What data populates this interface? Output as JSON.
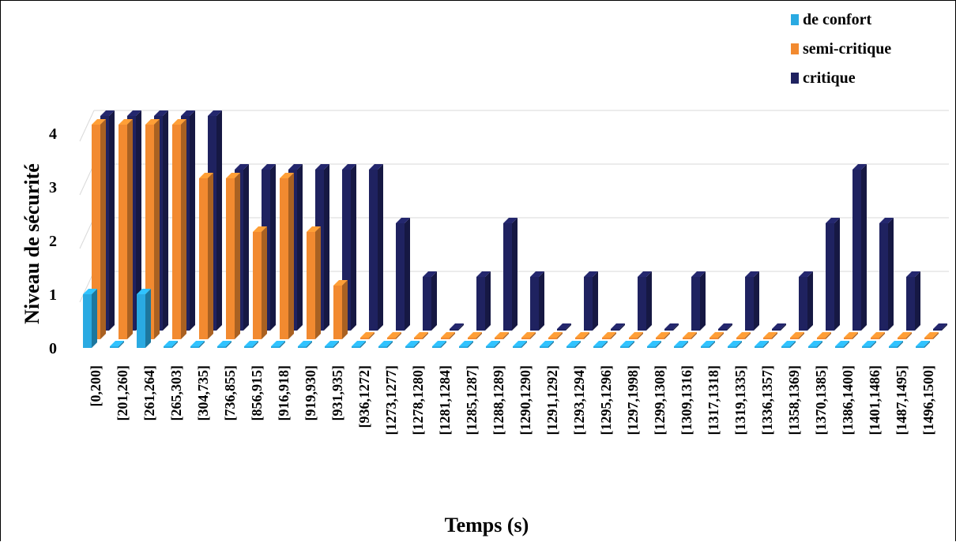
{
  "chart_data": {
    "type": "bar",
    "title": "",
    "xlabel": "Temps (s)",
    "ylabel": "Niveau de sécurité",
    "ylim": [
      0,
      4
    ],
    "yticks": [
      0,
      1,
      2,
      3,
      4
    ],
    "grid": true,
    "legend_position": "top-right",
    "categories": [
      "[0,200]",
      "[201,260]",
      "[261,264]",
      "[265,303]",
      "[304,735]",
      "[736,855]",
      "[856,915]",
      "[916,918]",
      "[919,930]",
      "[931,935]",
      "[936,1272]",
      "[1273,1277]",
      "[1278,1280]",
      "[1281,1284]",
      "[1285,1287]",
      "[1288,1289]",
      "[1290,1290]",
      "[1291,1292]",
      "[1293,1294]",
      "[1295,1296]",
      "[1297,1998]",
      "[1299,1308]",
      "[1309,1316]",
      "[1317,1318]",
      "[1319,1335]",
      "[1336,1357]",
      "[1358,1369]",
      "[1370,1385]",
      "[1386,1400]",
      "[1401,1486]",
      "[1487,1495]",
      "[1496,1500]"
    ],
    "series": [
      {
        "name": "de confort",
        "color": "#2aaae2",
        "values": [
          1,
          0,
          1,
          0,
          0,
          0,
          0,
          0,
          0,
          0,
          0,
          0,
          0,
          0,
          0,
          0,
          0,
          0,
          0,
          0,
          0,
          0,
          0,
          0,
          0,
          0,
          0,
          0,
          0,
          0,
          0,
          0
        ]
      },
      {
        "name": "semi-critique",
        "color": "#f28a30",
        "values": [
          4,
          4,
          4,
          4,
          3,
          3,
          2,
          3,
          2,
          1,
          0,
          0,
          0,
          0,
          0,
          0,
          0,
          0,
          0,
          0,
          0,
          0,
          0,
          0,
          0,
          0,
          0,
          0,
          0,
          0,
          0,
          0
        ]
      },
      {
        "name": "critique",
        "color": "#1f2260",
        "values": [
          4,
          4,
          4,
          4,
          4,
          3,
          3,
          3,
          3,
          3,
          3,
          2,
          1,
          0,
          1,
          2,
          1,
          0,
          1,
          0,
          1,
          0,
          1,
          0,
          1,
          0,
          1,
          2,
          3,
          2,
          1,
          0
        ]
      }
    ]
  }
}
